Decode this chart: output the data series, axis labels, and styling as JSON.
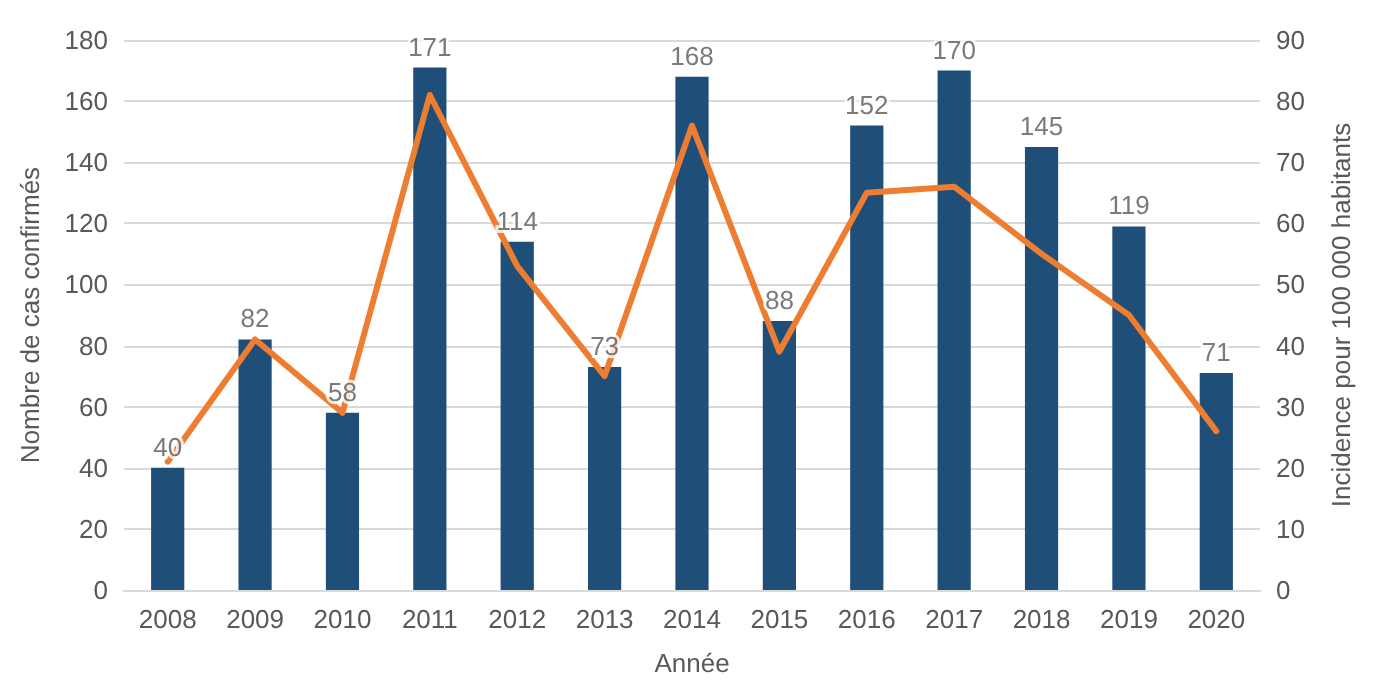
{
  "chart_data": {
    "type": "bar",
    "xlabel": "Année",
    "ylabel": "Nombre de cas confirmés",
    "y2label": "Incidence pour 100 000 habitants",
    "categories": [
      "2008",
      "2009",
      "2010",
      "2011",
      "2012",
      "2013",
      "2014",
      "2015",
      "2016",
      "2017",
      "2018",
      "2019",
      "2020"
    ],
    "series": [
      {
        "color": "#1f4e79",
        "values": [
          40,
          82,
          58,
          171,
          114,
          73,
          168,
          88,
          152,
          170,
          145,
          119,
          71
        ],
        "value_labels": [
          "40",
          "82",
          "58",
          "171",
          "114",
          "73",
          "168",
          "88",
          "152",
          "170",
          "145",
          "119",
          "71"
        ]
      },
      {
        "type": "line",
        "axis": "y2",
        "color": "#ed7d31",
        "values": [
          21,
          41,
          29,
          81,
          53,
          35,
          76,
          39,
          65,
          66,
          55,
          45,
          26
        ]
      }
    ],
    "ylim": [
      0,
      180
    ],
    "yticks": [
      0,
      20,
      40,
      60,
      80,
      100,
      120,
      140,
      160,
      180
    ],
    "y2lim": [
      0,
      90
    ],
    "y2ticks": [
      0,
      10,
      20,
      30,
      40,
      50,
      60,
      70,
      80,
      90
    ],
    "grid": "y",
    "marker": "none",
    "line_style": "solid"
  }
}
